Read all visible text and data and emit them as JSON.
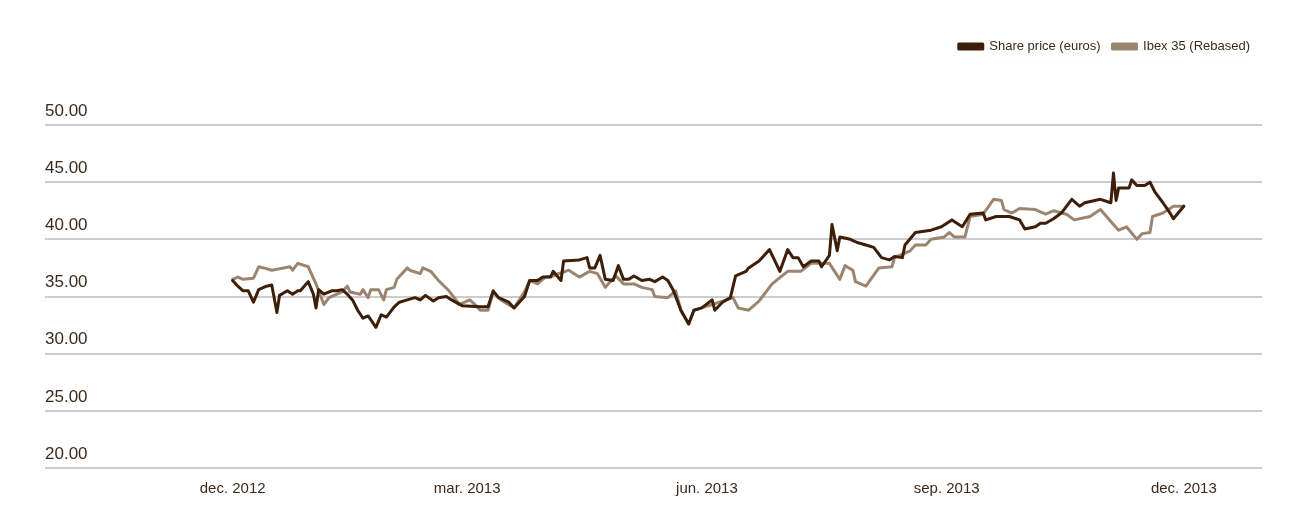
{
  "chart_data": {
    "type": "line",
    "series": [
      {
        "name": "Share price (euros)",
        "color": "#3d1e08",
        "x": [
          "2012-12-01",
          "2012-12-03",
          "2012-12-05",
          "2012-12-07",
          "2012-12-09",
          "2012-12-11",
          "2012-12-14",
          "2012-12-16",
          "2012-12-18",
          "2012-12-19",
          "2012-12-22",
          "2012-12-24",
          "2012-12-26",
          "2012-12-27",
          "2012-12-30",
          "2013-01-01",
          "2013-01-02",
          "2013-01-03",
          "2013-01-05",
          "2013-01-08",
          "2013-01-10",
          "2013-01-12",
          "2013-01-14",
          "2013-01-16",
          "2013-01-18",
          "2013-01-20",
          "2013-01-22",
          "2013-01-25",
          "2013-01-27",
          "2013-01-29",
          "2013-02-01",
          "2013-02-03",
          "2013-02-06",
          "2013-02-09",
          "2013-02-11",
          "2013-02-13",
          "2013-02-16",
          "2013-02-18",
          "2013-02-21",
          "2013-02-23",
          "2013-02-27",
          "2013-03-06",
          "2013-03-09",
          "2013-03-11",
          "2013-03-13",
          "2013-03-17",
          "2013-03-19",
          "2013-03-21",
          "2013-03-23",
          "2013-03-25",
          "2013-03-28",
          "2013-03-30",
          "2013-04-02",
          "2013-04-03",
          "2013-04-06",
          "2013-04-07",
          "2013-04-13",
          "2013-04-16",
          "2013-04-17",
          "2013-04-19",
          "2013-04-21",
          "2013-04-23",
          "2013-04-26",
          "2013-04-28",
          "2013-04-30",
          "2013-05-02",
          "2013-05-04",
          "2013-05-07",
          "2013-05-10",
          "2013-05-12",
          "2013-05-15",
          "2013-05-17",
          "2013-05-19",
          "2013-05-22",
          "2013-05-25",
          "2013-05-27",
          "2013-05-30",
          "2013-06-03",
          "2013-06-04",
          "2013-06-07",
          "2013-06-10",
          "2013-06-12",
          "2013-06-16",
          "2013-06-17",
          "2013-06-21",
          "2013-06-25",
          "2013-06-29",
          "2013-07-02",
          "2013-07-04",
          "2013-07-06",
          "2013-07-08",
          "2013-07-11",
          "2013-07-14",
          "2013-07-15",
          "2013-07-18",
          "2013-07-19",
          "2013-07-21",
          "2013-07-22",
          "2013-07-26",
          "2013-07-29",
          "2013-08-01",
          "2013-08-04",
          "2013-08-07",
          "2013-08-10",
          "2013-08-12",
          "2013-08-15",
          "2013-08-16",
          "2013-08-20",
          "2013-08-26",
          "2013-08-30",
          "2013-09-03",
          "2013-09-07",
          "2013-09-10",
          "2013-09-15",
          "2013-09-16",
          "2013-09-20",
          "2013-09-25",
          "2013-09-29",
          "2013-10-01",
          "2013-10-05",
          "2013-10-07",
          "2013-10-09",
          "2013-10-12",
          "2013-10-15",
          "2013-10-19",
          "2013-10-22",
          "2013-10-24",
          "2013-10-30",
          "2013-11-03",
          "2013-11-04",
          "2013-11-05",
          "2013-11-06",
          "2013-11-10",
          "2013-11-11",
          "2013-11-13",
          "2013-11-16",
          "2013-11-18",
          "2013-11-20",
          "2013-11-23",
          "2013-11-26",
          "2013-11-27",
          "2013-12-01"
        ],
        "values": [
          36.4,
          35.9,
          35.5,
          35.5,
          34.5,
          35.6,
          35.9,
          36.0,
          33.6,
          35.1,
          35.5,
          35.2,
          35.5,
          35.5,
          36.3,
          35.2,
          34.0,
          35.6,
          35.2,
          35.5,
          35.5,
          35.6,
          35.2,
          34.7,
          33.8,
          33.1,
          33.3,
          32.3,
          33.4,
          33.2,
          34.1,
          34.5,
          34.7,
          34.9,
          34.7,
          35.1,
          34.6,
          34.9,
          35.0,
          34.7,
          34.2,
          34.1,
          34.1,
          35.5,
          34.9,
          34.5,
          34.0,
          34.5,
          35.0,
          36.4,
          36.4,
          36.7,
          36.7,
          37.2,
          36.4,
          38.1,
          38.2,
          38.4,
          37.5,
          37.5,
          38.6,
          36.5,
          36.4,
          37.7,
          36.5,
          36.5,
          36.8,
          36.4,
          36.5,
          36.3,
          36.7,
          36.4,
          35.6,
          33.8,
          32.6,
          33.8,
          34.0,
          34.7,
          33.8,
          34.5,
          34.9,
          36.8,
          37.2,
          37.5,
          38.1,
          39.1,
          37.2,
          39.1,
          38.4,
          38.4,
          37.6,
          38.1,
          38.1,
          37.6,
          38.6,
          41.3,
          39.0,
          40.2,
          40.0,
          39.7,
          39.5,
          39.3,
          38.4,
          38.2,
          38.5,
          38.4,
          39.5,
          40.6,
          40.8,
          41.1,
          41.7,
          41.1,
          42.2,
          42.3,
          41.7,
          42.0,
          42.0,
          41.7,
          40.9,
          41.1,
          41.4,
          41.4,
          41.8,
          42.3,
          43.5,
          42.9,
          43.2,
          43.5,
          43.2,
          45.8,
          43.4,
          44.5,
          44.5,
          45.2,
          44.7,
          44.7,
          45.0,
          44.1,
          43.2,
          42.2,
          41.8,
          42.9
        ]
      },
      {
        "name": "Ibex 35 (Rebased)",
        "color": "#9c8570",
        "x": [
          "2012-12-01",
          "2012-12-03",
          "2012-12-05",
          "2012-12-09",
          "2012-12-11",
          "2012-12-13",
          "2012-12-16",
          "2012-12-23",
          "2012-12-24",
          "2012-12-26",
          "2012-12-30",
          "2013-01-02",
          "2013-01-05",
          "2013-01-07",
          "2013-01-12",
          "2013-01-14",
          "2013-01-15",
          "2013-01-19",
          "2013-01-20",
          "2013-01-22",
          "2013-01-23",
          "2013-01-26",
          "2013-01-28",
          "2013-01-29",
          "2013-02-01",
          "2013-02-02",
          "2013-02-06",
          "2013-02-07",
          "2013-02-11",
          "2013-02-12",
          "2013-02-15",
          "2013-02-18",
          "2013-02-22",
          "2013-02-26",
          "2013-03-02",
          "2013-03-04",
          "2013-03-06",
          "2013-03-09",
          "2013-03-11",
          "2013-03-14",
          "2013-03-19",
          "2013-03-23",
          "2013-03-25",
          "2013-03-28",
          "2013-03-31",
          "2013-04-03",
          "2013-04-05",
          "2013-04-09",
          "2013-04-13",
          "2013-04-17",
          "2013-04-20",
          "2013-04-23",
          "2013-04-27",
          "2013-04-30",
          "2013-05-04",
          "2013-05-07",
          "2013-05-11",
          "2013-05-12",
          "2013-05-17",
          "2013-05-20",
          "2013-05-22",
          "2013-05-25",
          "2013-05-27",
          "2013-05-30",
          "2013-06-03",
          "2013-06-07",
          "2013-06-11",
          "2013-06-13",
          "2013-06-17",
          "2013-06-21",
          "2013-06-26",
          "2013-07-02",
          "2013-07-07",
          "2013-07-11",
          "2013-07-18",
          "2013-07-22",
          "2013-07-24",
          "2013-07-27",
          "2013-07-28",
          "2013-08-01",
          "2013-08-06",
          "2013-08-11",
          "2013-08-12",
          "2013-08-18",
          "2013-08-20",
          "2013-08-24",
          "2013-08-26",
          "2013-08-31",
          "2013-09-02",
          "2013-09-04",
          "2013-09-08",
          "2013-09-10",
          "2013-09-15",
          "2013-09-19",
          "2013-09-22",
          "2013-09-23",
          "2013-09-26",
          "2013-09-29",
          "2013-10-05",
          "2013-10-09",
          "2013-10-12",
          "2013-10-17",
          "2013-10-20",
          "2013-10-26",
          "2013-10-30",
          "2013-11-04",
          "2013-11-06",
          "2013-11-09",
          "2013-11-13",
          "2013-11-15",
          "2013-11-18",
          "2013-11-19",
          "2013-11-23",
          "2013-11-27",
          "2013-12-01"
        ],
        "values": [
          36.5,
          36.7,
          36.5,
          36.6,
          37.6,
          37.5,
          37.3,
          37.6,
          37.3,
          37.9,
          37.6,
          36.1,
          34.3,
          34.9,
          35.4,
          35.9,
          35.4,
          35.2,
          35.6,
          34.9,
          35.6,
          35.6,
          34.7,
          35.6,
          35.8,
          36.5,
          37.5,
          37.3,
          37.0,
          37.5,
          37.2,
          36.4,
          35.5,
          34.3,
          34.7,
          34.3,
          33.8,
          33.8,
          35.4,
          34.7,
          34.0,
          35.4,
          36.4,
          36.1,
          36.7,
          36.8,
          37.0,
          37.3,
          36.7,
          37.2,
          37.0,
          35.8,
          36.8,
          36.1,
          36.1,
          35.8,
          35.6,
          35.0,
          34.9,
          35.5,
          33.8,
          32.6,
          33.8,
          34.0,
          34.3,
          34.6,
          34.9,
          34.0,
          33.8,
          34.6,
          36.1,
          37.2,
          37.2,
          37.9,
          37.9,
          36.5,
          37.7,
          37.3,
          36.3,
          35.9,
          37.5,
          37.6,
          38.4,
          39.0,
          39.5,
          39.5,
          40.0,
          40.2,
          40.6,
          40.2,
          40.2,
          42.0,
          42.2,
          43.5,
          43.4,
          42.6,
          42.3,
          42.7,
          42.6,
          42.2,
          42.5,
          42.2,
          41.7,
          42.0,
          42.6,
          41.3,
          40.8,
          41.1,
          40.0,
          40.5,
          40.6,
          42.0,
          42.3,
          42.9,
          42.9
        ]
      }
    ],
    "xlim": [
      "2012-09-20",
      "2013-12-31"
    ],
    "xticks": [
      {
        "value": "2012-12-01",
        "label": "dec. 2012"
      },
      {
        "value": "2013-03-01",
        "label": "mar. 2013"
      },
      {
        "value": "2013-06-01",
        "label": "jun. 2013"
      },
      {
        "value": "2013-09-01",
        "label": "sep. 2013"
      },
      {
        "value": "2013-12-01",
        "label": "dec. 2013"
      }
    ],
    "ylim": [
      20,
      50
    ],
    "yticks": [
      {
        "value": 20,
        "label": "20.00"
      },
      {
        "value": 25,
        "label": "25.00"
      },
      {
        "value": 30,
        "label": "30.00"
      },
      {
        "value": 35,
        "label": "35.00"
      },
      {
        "value": 40,
        "label": "40.00"
      },
      {
        "value": 45,
        "label": "45.00"
      },
      {
        "value": 50,
        "label": "50.00"
      }
    ],
    "grid": "y",
    "legend": "top right",
    "marker": "none",
    "line_style": "solid"
  }
}
